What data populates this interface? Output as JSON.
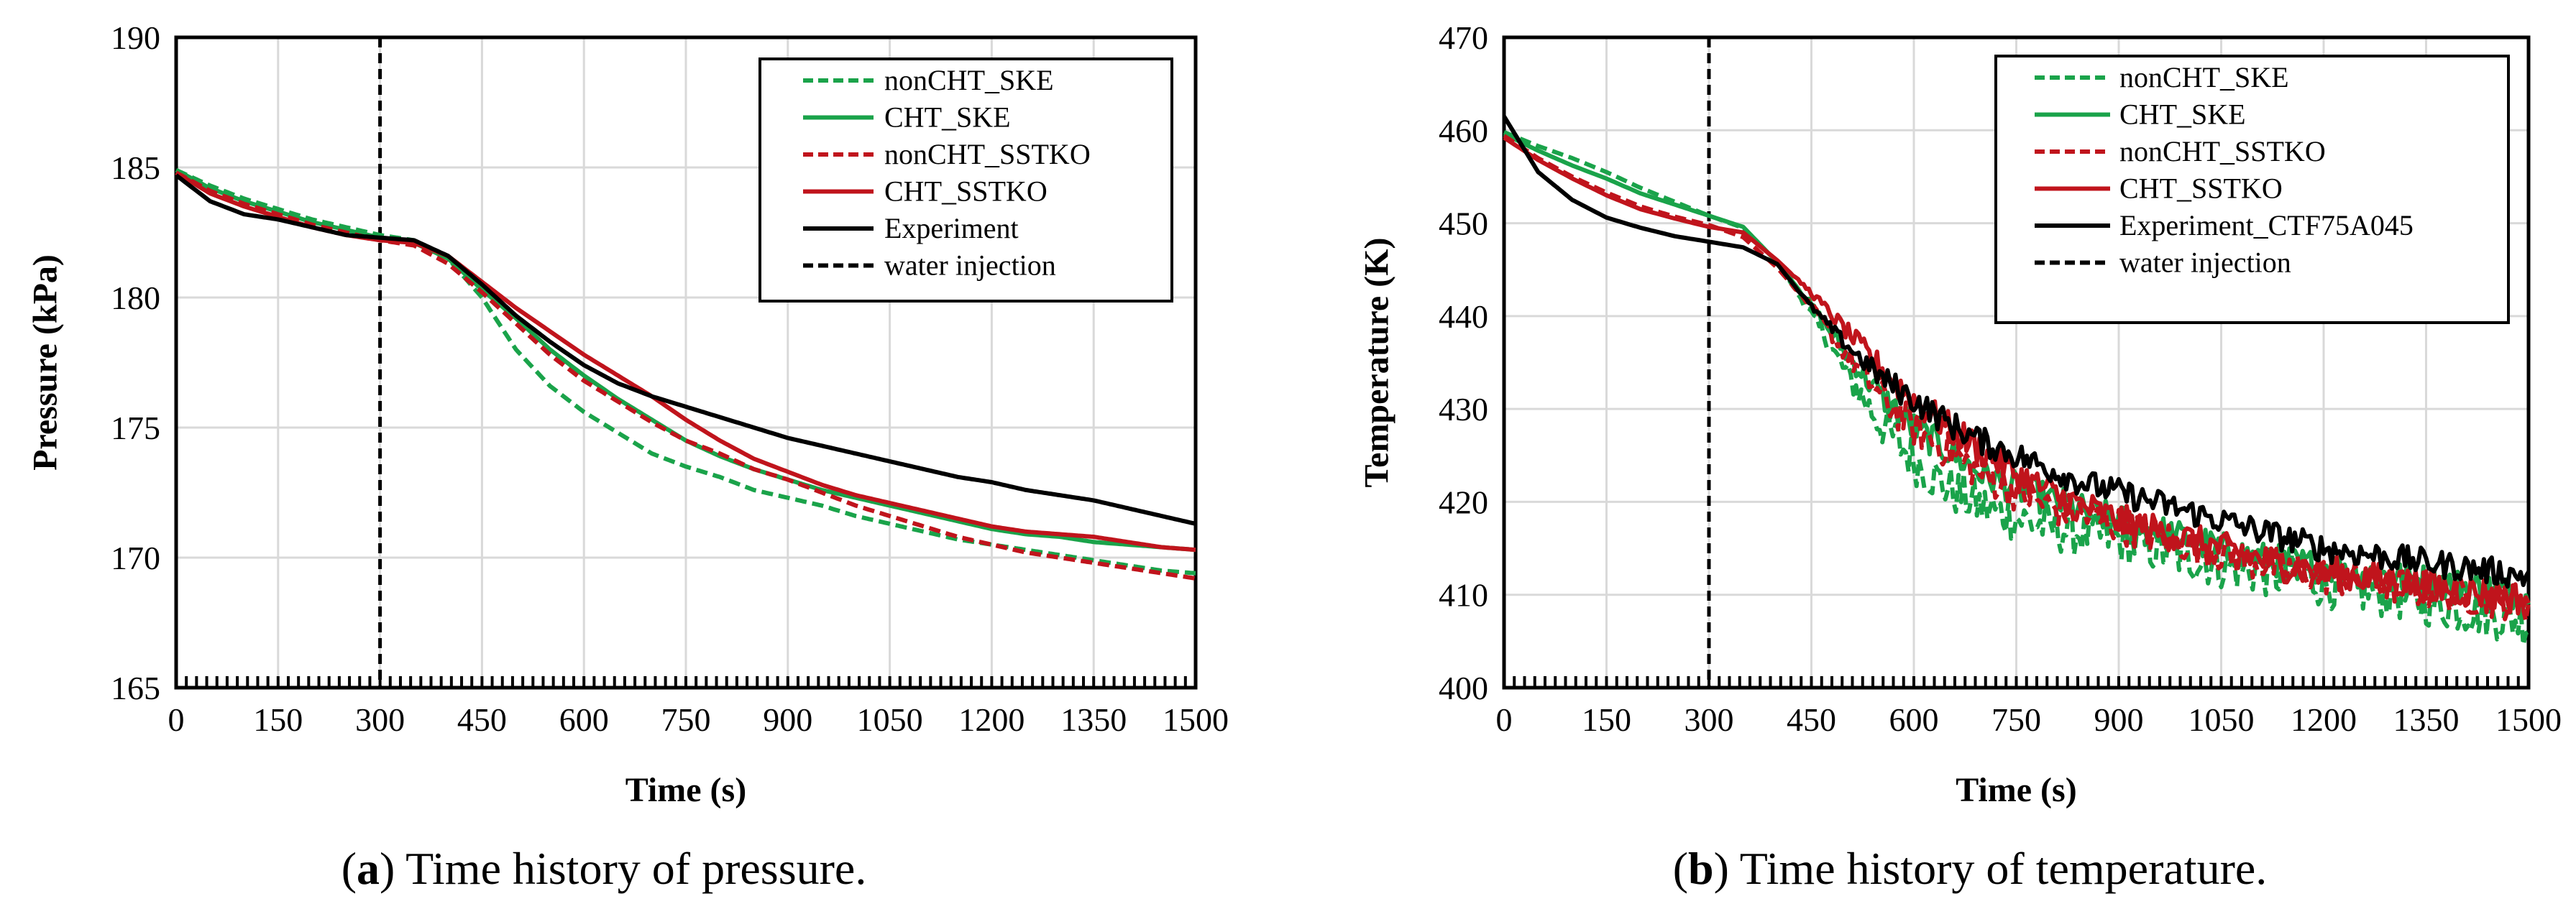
{
  "chart_data": [
    {
      "type": "line",
      "caption_letter": "a",
      "caption_text": " Time history of pressure.",
      "xlabel": "Time (s)",
      "ylabel": "Pressure (kPa)",
      "xlim": [
        0,
        1500
      ],
      "ylim": [
        165,
        190
      ],
      "xticks": [
        "0",
        "150",
        "300",
        "450",
        "600",
        "750",
        "900",
        "1050",
        "1200",
        "1350",
        "1500"
      ],
      "yticks": [
        "165",
        "170",
        "175",
        "180",
        "185",
        "190"
      ],
      "grid": true,
      "legend_position": "top-right",
      "vline": {
        "name": "water injection",
        "x": 300
      },
      "series": [
        {
          "name": "nonCHT_SKE",
          "color": "#1aa34a",
          "dash": "dashed",
          "x": [
            0,
            50,
            100,
            150,
            200,
            250,
            300,
            350,
            400,
            450,
            500,
            550,
            600,
            650,
            700,
            750,
            800,
            850,
            900,
            950,
            1000,
            1050,
            1100,
            1150,
            1200,
            1250,
            1300,
            1350,
            1400,
            1450,
            1500
          ],
          "y": [
            184.9,
            184.3,
            183.8,
            183.4,
            183.0,
            182.7,
            182.4,
            182.2,
            181.5,
            180.0,
            178.0,
            176.6,
            175.6,
            174.8,
            174.0,
            173.5,
            173.1,
            172.6,
            172.3,
            172.0,
            171.6,
            171.3,
            171.0,
            170.7,
            170.5,
            170.3,
            170.1,
            169.9,
            169.7,
            169.5,
            169.4
          ]
        },
        {
          "name": "CHT_SKE",
          "color": "#1aa34a",
          "dash": "solid",
          "x": [
            0,
            50,
            100,
            150,
            200,
            250,
            300,
            350,
            400,
            450,
            500,
            550,
            600,
            650,
            700,
            750,
            800,
            850,
            900,
            950,
            1000,
            1050,
            1100,
            1150,
            1200,
            1250,
            1300,
            1350,
            1400,
            1450,
            1500
          ],
          "y": [
            184.9,
            184.2,
            183.7,
            183.3,
            182.9,
            182.6,
            182.3,
            182.1,
            181.5,
            180.3,
            179.2,
            178.0,
            177.0,
            176.1,
            175.3,
            174.5,
            173.9,
            173.4,
            173.0,
            172.6,
            172.3,
            172.0,
            171.7,
            171.4,
            171.1,
            170.9,
            170.8,
            170.6,
            170.5,
            170.4,
            170.3
          ]
        },
        {
          "name": "nonCHT_SSTKO",
          "color": "#c0141c",
          "dash": "dashed",
          "x": [
            0,
            50,
            100,
            150,
            200,
            250,
            300,
            350,
            400,
            450,
            500,
            550,
            600,
            650,
            700,
            750,
            800,
            850,
            900,
            950,
            1000,
            1050,
            1100,
            1150,
            1200,
            1250,
            1300,
            1350,
            1400,
            1450,
            1500
          ],
          "y": [
            184.8,
            184.1,
            183.6,
            183.2,
            182.8,
            182.5,
            182.2,
            182.0,
            181.3,
            180.2,
            179.0,
            177.8,
            176.8,
            176.0,
            175.2,
            174.5,
            174.0,
            173.4,
            173.0,
            172.5,
            172.0,
            171.6,
            171.2,
            170.8,
            170.5,
            170.2,
            170.0,
            169.8,
            169.6,
            169.4,
            169.2
          ]
        },
        {
          "name": "CHT_SSTKO",
          "color": "#c0141c",
          "dash": "solid",
          "x": [
            0,
            50,
            100,
            150,
            200,
            250,
            300,
            350,
            400,
            450,
            500,
            550,
            600,
            650,
            700,
            750,
            800,
            850,
            900,
            950,
            1000,
            1050,
            1100,
            1150,
            1200,
            1250,
            1300,
            1350,
            1400,
            1450,
            1500
          ],
          "y": [
            184.8,
            184.0,
            183.5,
            183.1,
            182.7,
            182.4,
            182.2,
            182.1,
            181.6,
            180.6,
            179.6,
            178.7,
            177.8,
            177.0,
            176.2,
            175.3,
            174.5,
            173.8,
            173.3,
            172.8,
            172.4,
            172.1,
            171.8,
            171.5,
            171.2,
            171.0,
            170.9,
            170.8,
            170.6,
            170.4,
            170.3
          ]
        },
        {
          "name": "Experiment",
          "color": "#000000",
          "dash": "solid",
          "x": [
            0,
            50,
            100,
            150,
            200,
            250,
            300,
            350,
            400,
            450,
            500,
            550,
            600,
            650,
            700,
            750,
            800,
            850,
            900,
            950,
            1000,
            1050,
            1100,
            1150,
            1200,
            1250,
            1300,
            1350,
            1400,
            1450,
            1500
          ],
          "y": [
            184.7,
            183.7,
            183.2,
            183.0,
            182.7,
            182.4,
            182.3,
            182.2,
            181.6,
            180.5,
            179.3,
            178.3,
            177.4,
            176.7,
            176.2,
            175.8,
            175.4,
            175.0,
            174.6,
            174.3,
            174.0,
            173.7,
            173.4,
            173.1,
            172.9,
            172.6,
            172.4,
            172.2,
            171.9,
            171.6,
            171.3
          ]
        }
      ]
    },
    {
      "type": "line",
      "caption_letter": "b",
      "caption_text": " Time history of temperature.",
      "xlabel": "Time (s)",
      "ylabel": "Temperature (K)",
      "xlim": [
        0,
        1500
      ],
      "ylim": [
        400,
        470
      ],
      "xticks": [
        "0",
        "150",
        "300",
        "450",
        "600",
        "750",
        "900",
        "1050",
        "1200",
        "1350",
        "1500"
      ],
      "yticks": [
        "400",
        "410",
        "420",
        "430",
        "440",
        "450",
        "460",
        "470"
      ],
      "grid": true,
      "legend_position": "top-right",
      "vline": {
        "name": "water injection",
        "x": 300
      },
      "series": [
        {
          "name": "nonCHT_SKE",
          "color": "#1aa34a",
          "dash": "dashed",
          "noise": 2.6,
          "x": [
            0,
            50,
            100,
            150,
            200,
            250,
            300,
            350,
            400,
            450,
            500,
            550,
            600,
            650,
            700,
            750,
            800,
            850,
            900,
            950,
            1000,
            1050,
            1100,
            1150,
            1200,
            1250,
            1300,
            1350,
            1400,
            1450,
            1500
          ],
          "y": [
            459.8,
            458.3,
            457.0,
            455.5,
            453.8,
            452.3,
            450.8,
            449.5,
            445.8,
            440.2,
            434.0,
            428.5,
            424.5,
            421.5,
            419.5,
            418.3,
            417.2,
            416.6,
            416.0,
            415.0,
            414.0,
            413.2,
            412.5,
            412.0,
            411.2,
            410.5,
            410.0,
            409.2,
            408.5,
            407.8,
            407.0
          ]
        },
        {
          "name": "CHT_SKE",
          "color": "#1aa34a",
          "dash": "solid",
          "noise": 1.8,
          "x": [
            0,
            50,
            100,
            150,
            200,
            250,
            300,
            350,
            400,
            450,
            500,
            550,
            600,
            650,
            700,
            750,
            800,
            850,
            900,
            950,
            1000,
            1050,
            1100,
            1150,
            1200,
            1250,
            1300,
            1350,
            1400,
            1450,
            1500
          ],
          "y": [
            459.6,
            457.8,
            456.2,
            454.8,
            453.2,
            452.0,
            450.8,
            449.6,
            445.8,
            441.2,
            436.0,
            431.5,
            428.0,
            425.5,
            423.0,
            421.5,
            420.2,
            419.0,
            418.0,
            417.0,
            416.0,
            415.0,
            414.0,
            413.5,
            413.0,
            412.5,
            412.0,
            411.5,
            411.0,
            410.5,
            410.0
          ]
        },
        {
          "name": "nonCHT_SSTKO",
          "color": "#c0141c",
          "dash": "dashed",
          "noise": 2.0,
          "x": [
            0,
            50,
            100,
            150,
            200,
            250,
            300,
            350,
            400,
            450,
            500,
            550,
            600,
            650,
            700,
            750,
            800,
            850,
            900,
            950,
            1000,
            1050,
            1100,
            1150,
            1200,
            1250,
            1300,
            1350,
            1400,
            1450,
            1500
          ],
          "y": [
            459.4,
            457.0,
            455.0,
            453.3,
            451.8,
            450.7,
            449.8,
            448.5,
            445.2,
            441.0,
            436.0,
            431.5,
            428.0,
            425.5,
            423.0,
            421.0,
            419.5,
            418.5,
            417.5,
            416.5,
            415.5,
            414.5,
            413.5,
            412.8,
            412.0,
            411.5,
            411.0,
            410.5,
            410.0,
            409.5,
            409.0
          ]
        },
        {
          "name": "CHT_SSTKO",
          "color": "#c0141c",
          "dash": "solid",
          "noise": 1.8,
          "x": [
            0,
            50,
            100,
            150,
            200,
            250,
            300,
            350,
            400,
            450,
            500,
            550,
            600,
            650,
            700,
            750,
            800,
            850,
            900,
            950,
            1000,
            1050,
            1100,
            1150,
            1200,
            1250,
            1300,
            1350,
            1400,
            1450,
            1500
          ],
          "y": [
            459.2,
            456.8,
            454.8,
            453.0,
            451.5,
            450.5,
            449.6,
            449.0,
            446.0,
            442.5,
            438.5,
            434.5,
            431.0,
            428.0,
            425.5,
            423.0,
            421.0,
            419.5,
            418.0,
            417.0,
            416.0,
            415.0,
            414.0,
            413.0,
            412.5,
            412.0,
            411.5,
            411.0,
            410.5,
            410.0,
            409.5
          ]
        },
        {
          "name": "Experiment_CTF75A045",
          "color": "#000000",
          "dash": "solid",
          "noise": 1.5,
          "x": [
            0,
            50,
            100,
            150,
            200,
            250,
            300,
            350,
            400,
            450,
            500,
            550,
            600,
            650,
            700,
            750,
            800,
            850,
            900,
            950,
            1000,
            1050,
            1100,
            1150,
            1200,
            1250,
            1300,
            1350,
            1400,
            1450,
            1500
          ],
          "y": [
            461.5,
            455.5,
            452.5,
            450.6,
            449.5,
            448.6,
            448.0,
            447.4,
            445.6,
            441.0,
            437.0,
            433.5,
            431.0,
            428.5,
            426.5,
            425.0,
            423.5,
            422.0,
            421.0,
            420.0,
            419.0,
            418.0,
            417.0,
            416.0,
            415.0,
            414.5,
            414.0,
            413.5,
            413.0,
            412.5,
            412.0
          ]
        }
      ]
    }
  ]
}
